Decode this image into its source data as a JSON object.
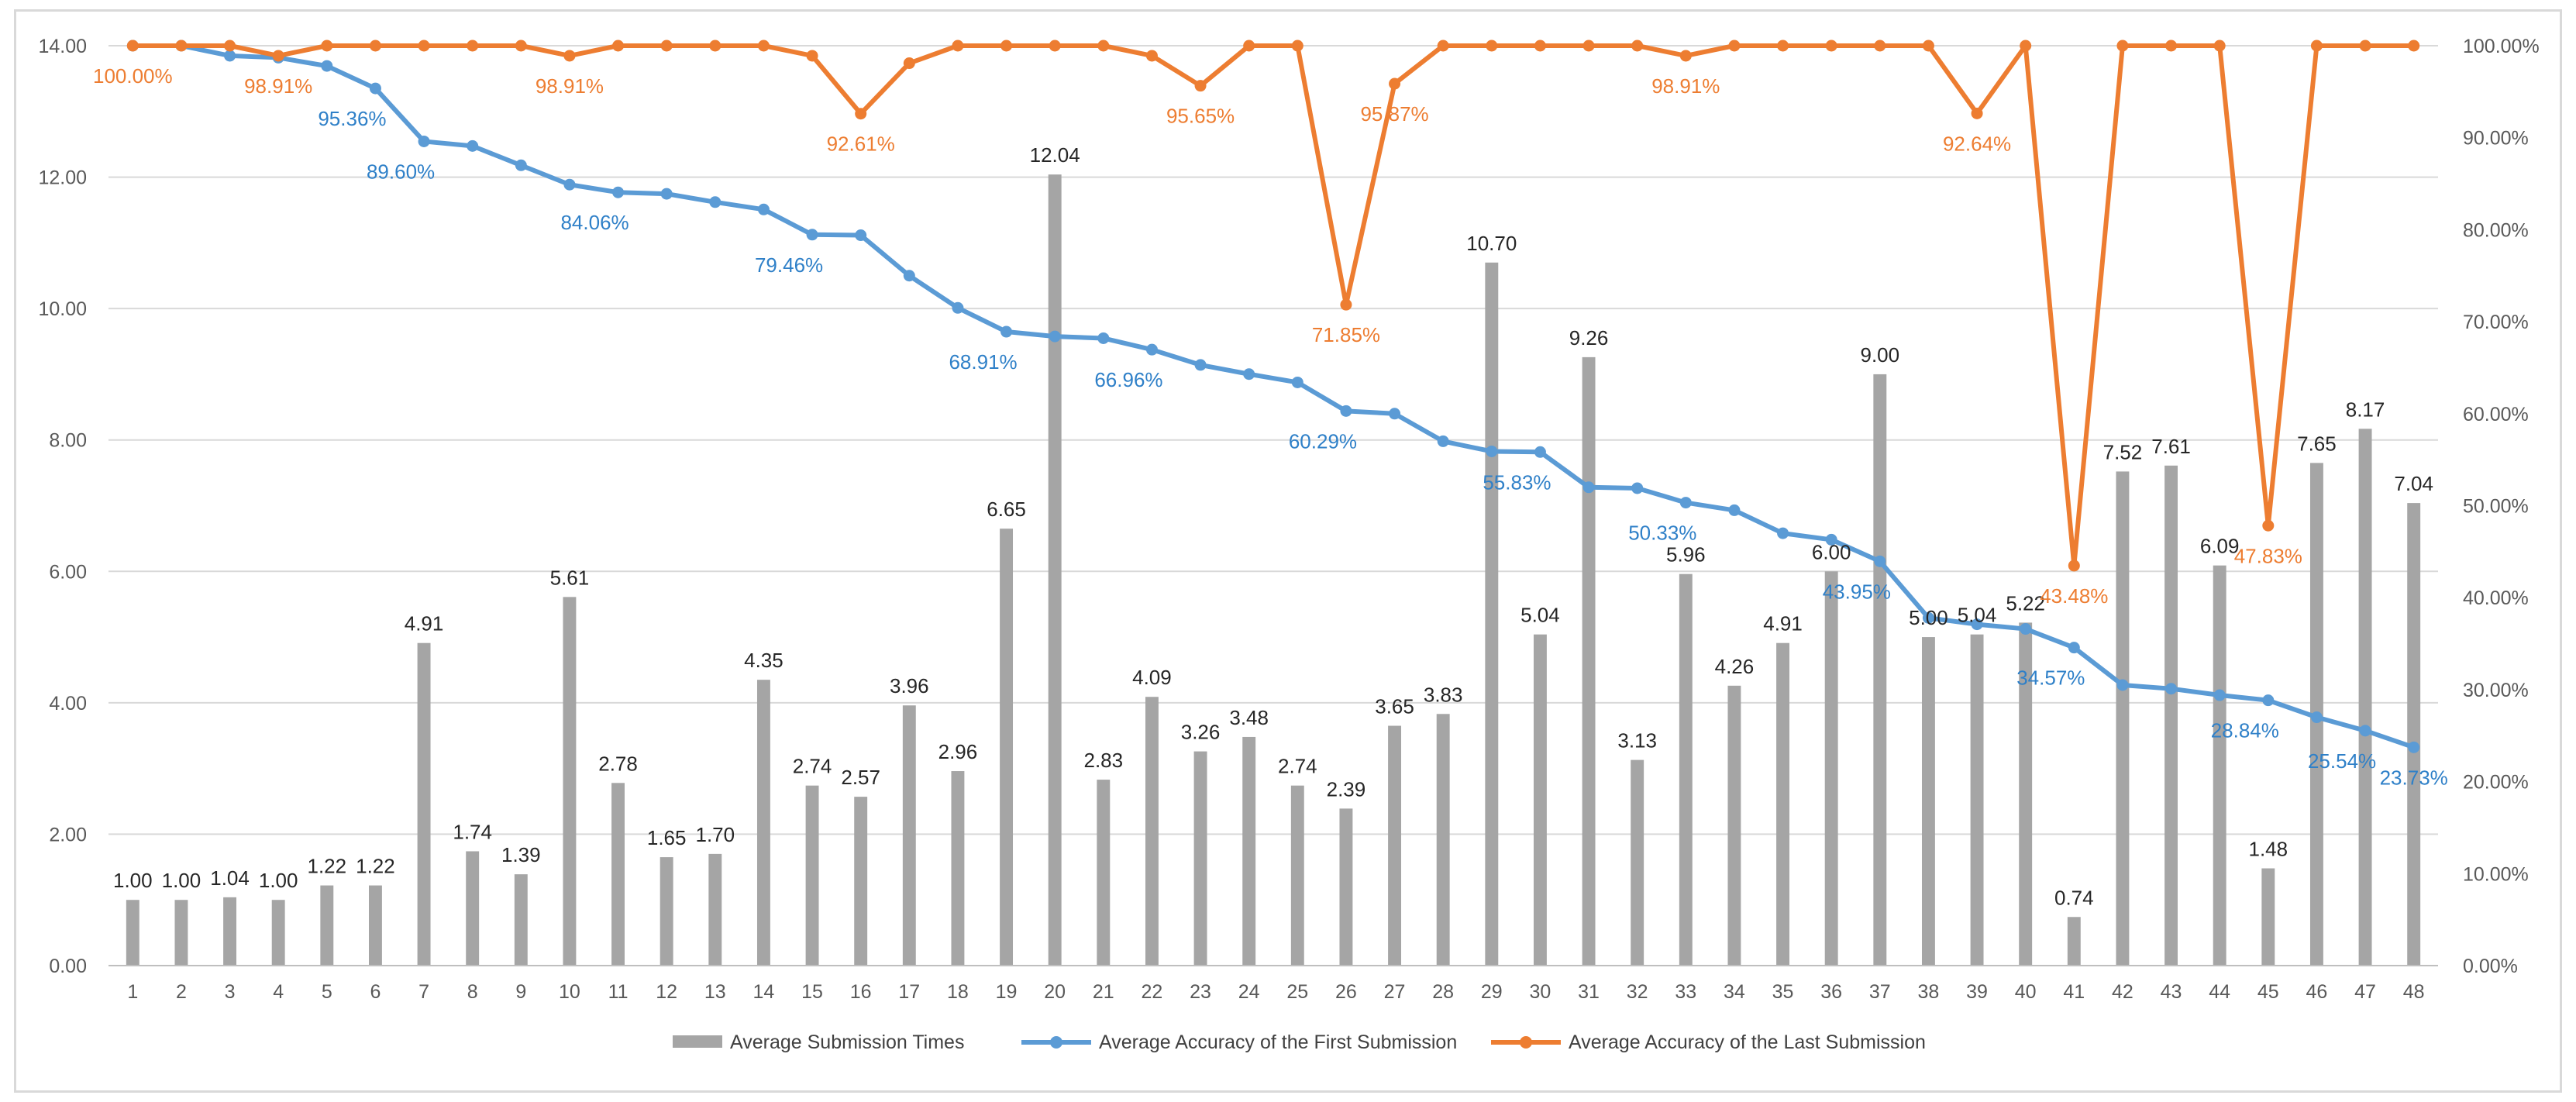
{
  "chart_data": {
    "type": "bar+line",
    "categories": [
      "1",
      "2",
      "3",
      "4",
      "5",
      "6",
      "7",
      "8",
      "9",
      "10",
      "11",
      "12",
      "13",
      "14",
      "15",
      "16",
      "17",
      "18",
      "19",
      "20",
      "21",
      "22",
      "23",
      "24",
      "25",
      "26",
      "27",
      "28",
      "29",
      "30",
      "31",
      "32",
      "33",
      "34",
      "35",
      "36",
      "37",
      "38",
      "39",
      "40",
      "41",
      "42",
      "43",
      "44",
      "45",
      "46",
      "47",
      "48"
    ],
    "left_axis": {
      "min": 0,
      "max": 14,
      "ticks": [
        "0.00",
        "2.00",
        "4.00",
        "6.00",
        "8.00",
        "10.00",
        "12.00",
        "14.00"
      ]
    },
    "right_axis": {
      "min": 0,
      "max": 100,
      "ticks": [
        "0.00%",
        "10.00%",
        "20.00%",
        "30.00%",
        "40.00%",
        "50.00%",
        "60.00%",
        "70.00%",
        "80.00%",
        "90.00%",
        "100.00%"
      ]
    },
    "series": [
      {
        "name": "Average Submission Times",
        "kind": "bar",
        "axis": "left",
        "color": "#a5a5a5",
        "values": [
          1.0,
          1.0,
          1.04,
          1.0,
          1.22,
          1.22,
          4.91,
          1.74,
          1.39,
          5.61,
          2.78,
          1.65,
          1.7,
          4.35,
          2.74,
          2.57,
          3.96,
          2.96,
          6.65,
          12.04,
          2.83,
          4.09,
          3.26,
          3.48,
          2.74,
          2.39,
          3.65,
          3.83,
          10.7,
          5.04,
          9.26,
          3.13,
          5.96,
          4.26,
          4.91,
          6.0,
          9.0,
          5.0,
          5.04,
          5.22,
          0.74,
          7.52,
          7.61,
          6.09,
          1.48,
          7.65,
          8.17,
          7.04
        ],
        "labels": [
          "1.00",
          "1.00",
          "1.04",
          "1.00",
          "1.22",
          "1.22",
          "4.91",
          "1.74",
          "1.39",
          "5.61",
          "2.78",
          "1.65",
          "1.70",
          "4.35",
          "2.74",
          "2.57",
          "3.96",
          "2.96",
          "6.65",
          "12.04",
          "2.83",
          "4.09",
          "3.26",
          "3.48",
          "2.74",
          "2.39",
          "3.65",
          "3.83",
          "10.70",
          "5.04",
          "9.26",
          "3.13",
          "5.96",
          "4.26",
          "4.91",
          "6.00",
          "9.00",
          "5.00",
          "5.04",
          "5.22",
          "0.74",
          "7.52",
          "7.61",
          "6.09",
          "1.48",
          "7.65",
          "8.17",
          "7.04"
        ]
      },
      {
        "name": "Average Accuracy of the First Submission",
        "kind": "line",
        "axis": "right",
        "color": "#5b9bd5",
        "values": [
          100.0,
          100.0,
          98.91,
          98.7,
          97.8,
          95.36,
          89.6,
          89.1,
          87.0,
          84.9,
          84.06,
          83.9,
          83.0,
          82.2,
          79.46,
          79.4,
          75.0,
          71.5,
          68.91,
          68.4,
          68.2,
          66.96,
          65.3,
          64.3,
          63.4,
          60.29,
          60.0,
          57.0,
          55.9,
          55.83,
          52.0,
          51.9,
          50.33,
          49.5,
          47.0,
          46.3,
          43.95,
          37.8,
          37.1,
          36.6,
          34.57,
          30.5,
          30.1,
          29.4,
          28.84,
          27.0,
          25.54,
          23.73
        ],
        "labels": [
          {
            "index": 5,
            "text": "95.36%"
          },
          {
            "index": 6,
            "text": "89.60%"
          },
          {
            "index": 10,
            "text": "84.06%"
          },
          {
            "index": 14,
            "text": "79.46%"
          },
          {
            "index": 18,
            "text": "68.91%"
          },
          {
            "index": 21,
            "text": "66.96%"
          },
          {
            "index": 25,
            "text": "60.29%"
          },
          {
            "index": 29,
            "text": "55.83%"
          },
          {
            "index": 32,
            "text": "50.33%"
          },
          {
            "index": 36,
            "text": "43.95%"
          },
          {
            "index": 40,
            "text": "34.57%"
          },
          {
            "index": 44,
            "text": "28.84%"
          },
          {
            "index": 46,
            "text": "25.54%"
          },
          {
            "index": 47,
            "text": "23.73%"
          }
        ]
      },
      {
        "name": "Average Accuracy of the Last Submission",
        "kind": "line",
        "axis": "right",
        "color": "#ed7d31",
        "values": [
          100.0,
          100.0,
          100.0,
          98.91,
          100.0,
          100.0,
          100.0,
          100.0,
          100.0,
          98.91,
          100.0,
          100.0,
          100.0,
          100.0,
          98.91,
          92.61,
          98.1,
          100.0,
          100.0,
          100.0,
          100.0,
          98.91,
          95.65,
          100.0,
          100.0,
          71.85,
          95.87,
          100.0,
          100.0,
          100.0,
          100.0,
          100.0,
          98.91,
          100.0,
          100.0,
          100.0,
          100.0,
          100.0,
          92.64,
          100.0,
          43.48,
          100.0,
          100.0,
          100.0,
          47.83,
          100.0,
          100.0,
          100.0
        ],
        "labels": [
          {
            "index": 0,
            "text": "100.00%"
          },
          {
            "index": 3,
            "text": "98.91%"
          },
          {
            "index": 9,
            "text": "98.91%"
          },
          {
            "index": 15,
            "text": "92.61%"
          },
          {
            "index": 22,
            "text": "95.65%"
          },
          {
            "index": 25,
            "text": "71.85%"
          },
          {
            "index": 26,
            "text": "95.87%"
          },
          {
            "index": 32,
            "text": "98.91%"
          },
          {
            "index": 38,
            "text": "92.64%"
          },
          {
            "index": 40,
            "text": "43.48%"
          },
          {
            "index": 44,
            "text": "47.83%"
          }
        ]
      }
    ],
    "legend": {
      "position": "bottom"
    },
    "grid": {
      "horizontal": true,
      "vertical": false,
      "color": "#d9d9d9"
    }
  }
}
